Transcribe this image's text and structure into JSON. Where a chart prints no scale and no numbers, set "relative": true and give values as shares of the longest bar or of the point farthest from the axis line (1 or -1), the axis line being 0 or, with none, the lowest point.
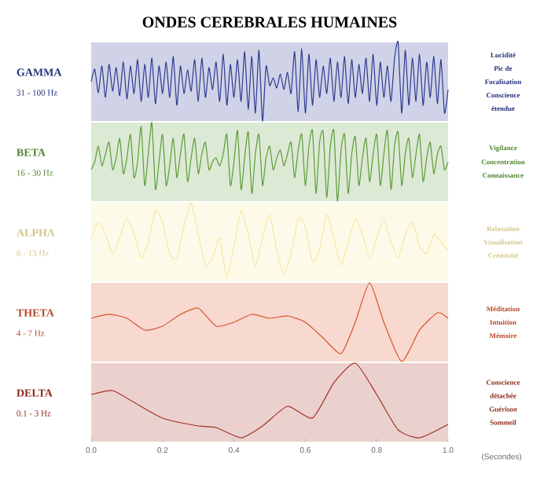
{
  "chart_data": [
    {
      "type": "line",
      "title": "ONDES CEREBRALES HUMAINES",
      "ylabel": "GAMMA",
      "annotations": [
        "31 - 100 Hz",
        "Lucidité",
        "Pic de",
        "Focalisation",
        "Conscience",
        "étendue"
      ],
      "xlim": [
        0,
        1
      ],
      "relative": true,
      "tick_labels": false,
      "series": [
        {
          "color": "#2b3990",
          "x": [
            0,
            0.01,
            0.02,
            0.03,
            0.04,
            0.05,
            0.06,
            0.07,
            0.08,
            0.09,
            0.1,
            0.11,
            0.12,
            0.13,
            0.14,
            0.15,
            0.16,
            0.17,
            0.18,
            0.19,
            0.2,
            0.21,
            0.22,
            0.23,
            0.24,
            0.25,
            0.26,
            0.27,
            0.28,
            0.29,
            0.3,
            0.31,
            0.32,
            0.33,
            0.34,
            0.35,
            0.36,
            0.37,
            0.38,
            0.39,
            0.4,
            0.41,
            0.42,
            0.43,
            0.44,
            0.45,
            0.46,
            0.47,
            0.48,
            0.49,
            0.5,
            0.51,
            0.52,
            0.53,
            0.54,
            0.55,
            0.56,
            0.57,
            0.58,
            0.59,
            0.6,
            0.61,
            0.62,
            0.63,
            0.64,
            0.65,
            0.66,
            0.67,
            0.68,
            0.69,
            0.7,
            0.71,
            0.72,
            0.73,
            0.74,
            0.75,
            0.76,
            0.77,
            0.78,
            0.79,
            0.8,
            0.81,
            0.82,
            0.83,
            0.84,
            0.85,
            0.86,
            0.87,
            0.88,
            0.89,
            0.9,
            0.91,
            0.92,
            0.93,
            0.94,
            0.95,
            0.96,
            0.97,
            0.98,
            0.99,
            1.0
          ],
          "values": [
            0.5,
            0.66,
            0.36,
            0.7,
            0.3,
            0.72,
            0.38,
            0.68,
            0.32,
            0.75,
            0.28,
            0.7,
            0.35,
            0.78,
            0.25,
            0.72,
            0.3,
            0.8,
            0.22,
            0.7,
            0.35,
            0.75,
            0.3,
            0.82,
            0.2,
            0.7,
            0.35,
            0.65,
            0.38,
            0.78,
            0.25,
            0.8,
            0.3,
            0.68,
            0.4,
            0.75,
            0.25,
            0.85,
            0.2,
            0.72,
            0.3,
            0.78,
            0.25,
            0.88,
            0.15,
            0.82,
            0.1,
            0.9,
            0.0,
            0.7,
            0.45,
            0.55,
            0.42,
            0.6,
            0.4,
            0.62,
            0.35,
            0.88,
            0.12,
            0.92,
            0.1,
            0.85,
            0.2,
            0.78,
            0.3,
            0.7,
            0.35,
            0.8,
            0.25,
            0.75,
            0.3,
            0.82,
            0.22,
            0.78,
            0.3,
            0.72,
            0.35,
            0.8,
            0.25,
            0.85,
            0.2,
            0.75,
            0.3,
            0.7,
            0.25,
            0.8,
            1.0,
            0.1,
            0.9,
            0.2,
            0.8,
            0.25,
            0.85,
            0.2,
            0.75,
            0.3,
            0.82,
            0.22,
            0.78,
            0.1,
            0.4
          ]
        }
      ]
    },
    {
      "type": "line",
      "ylabel": "BETA",
      "annotations": [
        "16 - 30 Hz",
        "Vigilance",
        "Concentration",
        "Connaissance"
      ],
      "xlim": [
        0,
        1
      ],
      "relative": true,
      "tick_labels": false,
      "series": [
        {
          "color": "#5e9b3a",
          "x": [
            0,
            0.01,
            0.02,
            0.03,
            0.04,
            0.05,
            0.06,
            0.07,
            0.08,
            0.09,
            0.1,
            0.11,
            0.12,
            0.13,
            0.14,
            0.15,
            0.16,
            0.17,
            0.18,
            0.19,
            0.2,
            0.21,
            0.22,
            0.23,
            0.24,
            0.25,
            0.26,
            0.27,
            0.28,
            0.29,
            0.3,
            0.31,
            0.32,
            0.33,
            0.34,
            0.35,
            0.36,
            0.37,
            0.38,
            0.39,
            0.4,
            0.41,
            0.42,
            0.43,
            0.44,
            0.45,
            0.46,
            0.47,
            0.48,
            0.49,
            0.5,
            0.51,
            0.52,
            0.53,
            0.54,
            0.55,
            0.56,
            0.57,
            0.58,
            0.59,
            0.6,
            0.61,
            0.62,
            0.63,
            0.64,
            0.65,
            0.66,
            0.67,
            0.68,
            0.69,
            0.7,
            0.71,
            0.72,
            0.73,
            0.74,
            0.75,
            0.76,
            0.77,
            0.78,
            0.79,
            0.8,
            0.81,
            0.82,
            0.83,
            0.84,
            0.85,
            0.86,
            0.87,
            0.88,
            0.89,
            0.9,
            0.91,
            0.92,
            0.93,
            0.94,
            0.95,
            0.96,
            0.97,
            0.98,
            0.99,
            1.0
          ],
          "values": [
            0.4,
            0.5,
            0.7,
            0.45,
            0.6,
            0.75,
            0.4,
            0.55,
            0.8,
            0.35,
            0.55,
            0.85,
            0.3,
            0.5,
            0.95,
            0.2,
            0.6,
            1.0,
            0.15,
            0.5,
            0.85,
            0.2,
            0.45,
            0.8,
            0.3,
            0.6,
            0.85,
            0.25,
            0.55,
            0.8,
            0.35,
            0.6,
            0.75,
            0.4,
            0.5,
            0.55,
            0.45,
            0.6,
            0.85,
            0.2,
            0.5,
            0.9,
            0.15,
            0.55,
            0.88,
            0.1,
            0.6,
            0.85,
            0.2,
            0.55,
            0.7,
            0.4,
            0.55,
            0.65,
            0.45,
            0.6,
            0.75,
            0.3,
            0.65,
            0.85,
            0.2,
            0.7,
            0.9,
            0.1,
            0.75,
            0.88,
            0.05,
            0.7,
            0.9,
            0.0,
            0.65,
            0.85,
            0.1,
            0.6,
            0.82,
            0.2,
            0.55,
            0.8,
            0.25,
            0.6,
            0.85,
            0.2,
            0.6,
            0.9,
            0.15,
            0.7,
            0.88,
            0.2,
            0.6,
            0.8,
            0.3,
            0.6,
            0.85,
            0.25,
            0.55,
            0.75,
            0.35,
            0.6,
            0.7,
            0.4,
            0.5
          ]
        }
      ]
    },
    {
      "type": "line",
      "ylabel": "ALPHA",
      "annotations": [
        "8 - 13 Hz",
        "Relaxation",
        "Visualisation",
        "Créativité"
      ],
      "xlim": [
        0,
        1
      ],
      "relative": true,
      "tick_labels": false,
      "series": [
        {
          "color": "#f7e9a0",
          "x": [
            0,
            0.02,
            0.04,
            0.06,
            0.08,
            0.1,
            0.12,
            0.14,
            0.16,
            0.18,
            0.2,
            0.22,
            0.24,
            0.26,
            0.28,
            0.3,
            0.32,
            0.34,
            0.36,
            0.38,
            0.4,
            0.42,
            0.44,
            0.46,
            0.48,
            0.5,
            0.52,
            0.54,
            0.56,
            0.58,
            0.6,
            0.62,
            0.64,
            0.66,
            0.68,
            0.7,
            0.72,
            0.74,
            0.76,
            0.78,
            0.8,
            0.82,
            0.84,
            0.86,
            0.88,
            0.9,
            0.92,
            0.94,
            0.96,
            0.98,
            1.0
          ],
          "values": [
            0.55,
            0.75,
            0.6,
            0.35,
            0.55,
            0.8,
            0.6,
            0.3,
            0.5,
            0.9,
            0.75,
            0.35,
            0.3,
            0.7,
            1.0,
            0.6,
            0.2,
            0.3,
            0.55,
            0.05,
            0.45,
            0.9,
            0.6,
            0.2,
            0.55,
            0.85,
            0.4,
            0.1,
            0.35,
            0.8,
            0.7,
            0.25,
            0.4,
            0.85,
            0.55,
            0.2,
            0.5,
            0.8,
            0.6,
            0.3,
            0.55,
            0.8,
            0.5,
            0.3,
            0.6,
            0.75,
            0.45,
            0.35,
            0.6,
            0.5,
            0.4
          ]
        }
      ]
    },
    {
      "type": "line",
      "ylabel": "THETA",
      "annotations": [
        "4 - 7 Hz",
        "Méditation",
        "Intuition",
        "Mémoire"
      ],
      "xlim": [
        0,
        1
      ],
      "relative": true,
      "tick_labels": false,
      "series": [
        {
          "color": "#d9532b",
          "x": [
            0,
            0.05,
            0.1,
            0.15,
            0.2,
            0.25,
            0.3,
            0.35,
            0.4,
            0.45,
            0.5,
            0.55,
            0.6,
            0.65,
            0.7,
            0.74,
            0.78,
            0.82,
            0.87,
            0.92,
            0.97,
            1.0
          ],
          "values": [
            0.55,
            0.6,
            0.55,
            0.4,
            0.45,
            0.6,
            0.68,
            0.45,
            0.5,
            0.6,
            0.55,
            0.58,
            0.5,
            0.3,
            0.1,
            0.5,
            1.0,
            0.5,
            0.0,
            0.4,
            0.62,
            0.55
          ]
        }
      ]
    },
    {
      "type": "line",
      "ylabel": "DELTA",
      "annotations": [
        "0.1 - 3 Hz",
        "Conscience",
        "détachée",
        "Guérison",
        "Sommeil"
      ],
      "xlim": [
        0,
        1
      ],
      "relative": true,
      "tick_labels": "x",
      "xlabel": "(Secondes)",
      "xticks": [
        {
          "value": 0,
          "label": "0.0"
        },
        0.2,
        0.4,
        0.6,
        0.8,
        {
          "value": 1,
          "label": "1.0"
        }
      ],
      "series": [
        {
          "color": "#a3301f",
          "x": [
            0,
            0.06,
            0.12,
            0.2,
            0.3,
            0.35,
            0.42,
            0.48,
            0.55,
            0.62,
            0.68,
            0.74,
            0.8,
            0.86,
            0.92,
            1.0
          ],
          "values": [
            0.6,
            0.65,
            0.5,
            0.3,
            0.2,
            0.18,
            0.05,
            0.2,
            0.45,
            0.3,
            0.75,
            1.0,
            0.6,
            0.15,
            0.05,
            0.22
          ]
        }
      ]
    }
  ]
}
